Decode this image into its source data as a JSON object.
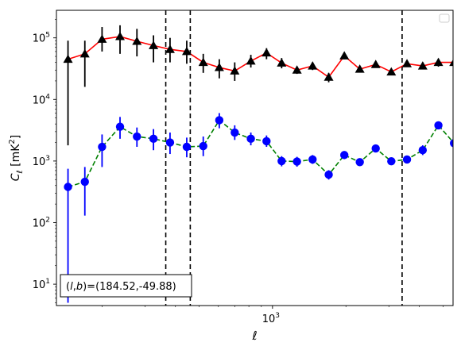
{
  "chart_data": {
    "type": "scatter",
    "xlabel": "ℓ",
    "ylabel": "C_ℓ [mK²]",
    "xscale": "log",
    "yscale": "log",
    "xlim": [
      130,
      5500
    ],
    "ylim": [
      4.5,
      280000
    ],
    "x_tick_labels": [
      {
        "value": 1000,
        "base": "10",
        "exp": "3"
      }
    ],
    "y_tick_labels": [
      {
        "value": 10,
        "base": "10",
        "exp": "1"
      },
      {
        "value": 100,
        "base": "10",
        "exp": "2"
      },
      {
        "value": 1000,
        "base": "10",
        "exp": "3"
      },
      {
        "value": 10000,
        "base": "10",
        "exp": "4"
      },
      {
        "value": 100000,
        "base": "10",
        "exp": "5"
      }
    ],
    "annotation": "(l,b)=(184.52,-49.88)",
    "legend": {
      "placement": "top-right",
      "entries": []
    },
    "vlines": [
      {
        "x": 365,
        "color": "#000000",
        "style": "dashed"
      },
      {
        "x": 460,
        "color": "#000000",
        "style": "dashed"
      },
      {
        "x": 3400,
        "color": "#000000",
        "style": "dashed"
      }
    ],
    "series": [
      {
        "marker": "triangle",
        "marker_color": "#000000",
        "line_color": "#ff0000",
        "line_style": "solid",
        "points": [
          {
            "x": 145,
            "y": 45000,
            "lo": 1800,
            "hi": 90000
          },
          {
            "x": 170,
            "y": 55000,
            "lo": 16000,
            "hi": 90000
          },
          {
            "x": 200,
            "y": 95000,
            "lo": 60000,
            "hi": 150000
          },
          {
            "x": 237,
            "y": 105000,
            "lo": 55000,
            "hi": 160000
          },
          {
            "x": 278,
            "y": 88000,
            "lo": 50000,
            "hi": 140000
          },
          {
            "x": 325,
            "y": 75000,
            "lo": 40000,
            "hi": 110000
          },
          {
            "x": 380,
            "y": 65000,
            "lo": 40000,
            "hi": 100000
          },
          {
            "x": 445,
            "y": 60000,
            "lo": 38000,
            "hi": 90000
          },
          {
            "x": 520,
            "y": 40000,
            "lo": 27000,
            "hi": 55000
          },
          {
            "x": 605,
            "y": 33000,
            "lo": 22000,
            "hi": 45000
          },
          {
            "x": 700,
            "y": 29000,
            "lo": 20000,
            "hi": 40000
          },
          {
            "x": 815,
            "y": 42000,
            "lo": 33000,
            "hi": 53000
          },
          {
            "x": 945,
            "y": 57000,
            "lo": 45000,
            "hi": 68000
          },
          {
            "x": 1090,
            "y": 39000,
            "lo": 32000,
            "hi": 47000
          },
          {
            "x": 1260,
            "y": 30000,
            "lo": 26000,
            "hi": 34000
          },
          {
            "x": 1460,
            "y": 35000,
            "lo": 30000,
            "hi": 40000
          },
          {
            "x": 1700,
            "y": 23000,
            "lo": 19000,
            "hi": 27000
          },
          {
            "x": 1970,
            "y": 51000,
            "lo": 45000,
            "hi": 57000
          },
          {
            "x": 2280,
            "y": 31000,
            "lo": 28000,
            "hi": 34000
          },
          {
            "x": 2650,
            "y": 37000,
            "lo": 33000,
            "hi": 41000
          },
          {
            "x": 3070,
            "y": 28000,
            "lo": 25000,
            "hi": 31000
          },
          {
            "x": 3560,
            "y": 38000,
            "lo": 34000,
            "hi": 42000
          },
          {
            "x": 4130,
            "y": 35000,
            "lo": 31000,
            "hi": 40000
          },
          {
            "x": 4790,
            "y": 40000,
            "lo": 34000,
            "hi": 46000
          },
          {
            "x": 5550,
            "y": 40000,
            "lo": 30000,
            "hi": 50000
          }
        ]
      },
      {
        "marker": "circle",
        "marker_color": "#0000ff",
        "line_color": "#008000",
        "line_style": "dashed",
        "points": [
          {
            "x": 145,
            "y": 380,
            "lo": 5,
            "hi": 750
          },
          {
            "x": 170,
            "y": 460,
            "lo": 130,
            "hi": 800
          },
          {
            "x": 200,
            "y": 1700,
            "lo": 800,
            "hi": 2700
          },
          {
            "x": 237,
            "y": 3600,
            "lo": 2300,
            "hi": 5200
          },
          {
            "x": 278,
            "y": 2500,
            "lo": 1700,
            "hi": 3500
          },
          {
            "x": 325,
            "y": 2300,
            "lo": 1500,
            "hi": 3300
          },
          {
            "x": 380,
            "y": 2000,
            "lo": 1300,
            "hi": 2900
          },
          {
            "x": 445,
            "y": 1700,
            "lo": 1150,
            "hi": 2400
          },
          {
            "x": 520,
            "y": 1750,
            "lo": 1200,
            "hi": 2500
          },
          {
            "x": 605,
            "y": 4600,
            "lo": 3400,
            "hi": 6000
          },
          {
            "x": 700,
            "y": 2900,
            "lo": 2200,
            "hi": 3800
          },
          {
            "x": 815,
            "y": 2300,
            "lo": 1800,
            "hi": 2900
          },
          {
            "x": 945,
            "y": 2100,
            "lo": 1700,
            "hi": 2600
          },
          {
            "x": 1090,
            "y": 1000,
            "lo": 820,
            "hi": 1200
          },
          {
            "x": 1260,
            "y": 980,
            "lo": 810,
            "hi": 1170
          },
          {
            "x": 1460,
            "y": 1060,
            "lo": 900,
            "hi": 1250
          },
          {
            "x": 1700,
            "y": 600,
            "lo": 500,
            "hi": 710
          },
          {
            "x": 1970,
            "y": 1250,
            "lo": 1080,
            "hi": 1440
          },
          {
            "x": 2280,
            "y": 960,
            "lo": 850,
            "hi": 1080
          },
          {
            "x": 2650,
            "y": 1600,
            "lo": 1430,
            "hi": 1780
          },
          {
            "x": 3070,
            "y": 990,
            "lo": 890,
            "hi": 1100
          },
          {
            "x": 3560,
            "y": 1060,
            "lo": 950,
            "hi": 1180
          },
          {
            "x": 4130,
            "y": 1500,
            "lo": 1250,
            "hi": 1800
          },
          {
            "x": 4790,
            "y": 3800,
            "lo": 3300,
            "hi": 4400
          },
          {
            "x": 5550,
            "y": 1950,
            "lo": 1400,
            "hi": 2600
          }
        ]
      }
    ]
  }
}
